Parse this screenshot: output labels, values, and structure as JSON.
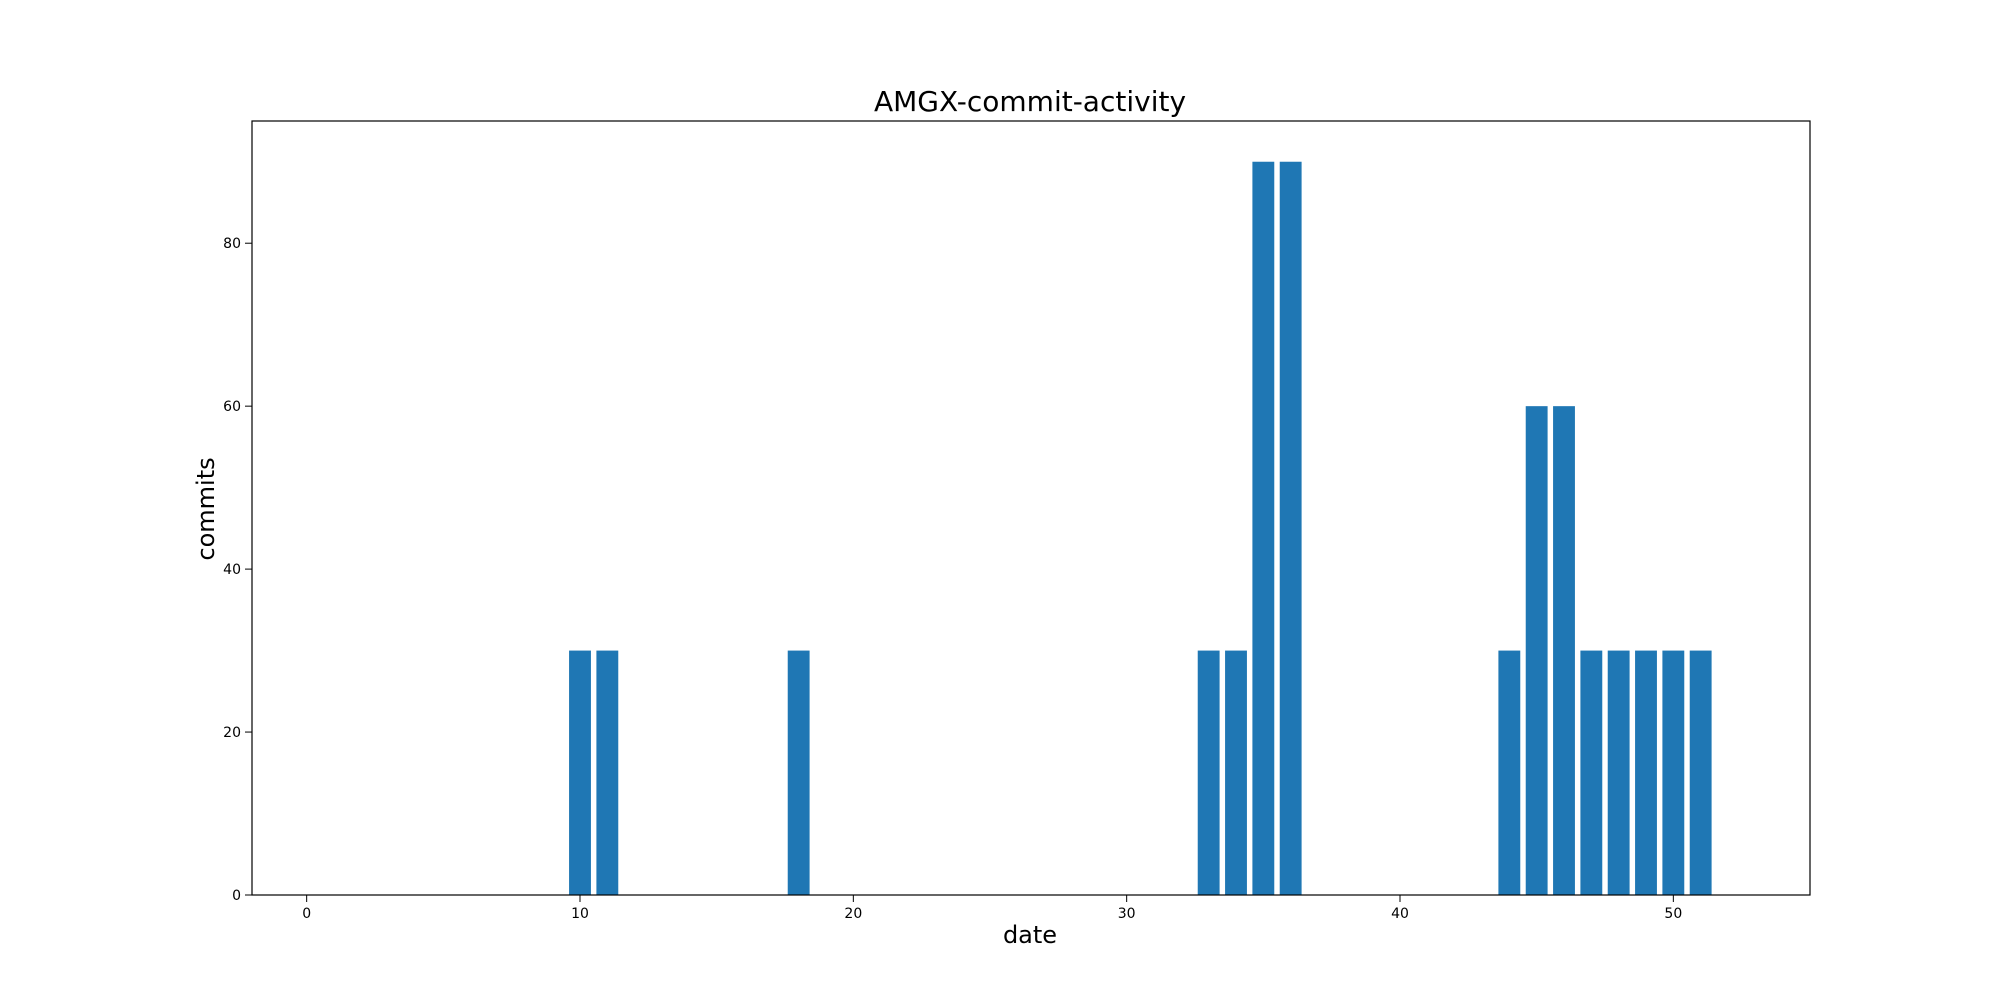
{
  "chart_data": {
    "type": "bar",
    "title": "AMGX-commit-activity",
    "xlabel": "date",
    "ylabel": "commits",
    "xlim": [
      -2,
      55
    ],
    "ylim": [
      0,
      95
    ],
    "xticks": [
      0,
      10,
      20,
      30,
      40,
      50
    ],
    "yticks": [
      0,
      20,
      40,
      60,
      80
    ],
    "grid": false,
    "bar_color": "#1f77b4",
    "x": [
      0,
      1,
      2,
      3,
      4,
      5,
      6,
      7,
      8,
      9,
      10,
      11,
      12,
      13,
      14,
      15,
      16,
      17,
      18,
      19,
      20,
      21,
      22,
      23,
      24,
      25,
      26,
      27,
      28,
      29,
      30,
      31,
      32,
      33,
      34,
      35,
      36,
      37,
      38,
      39,
      40,
      41,
      42,
      43,
      44,
      45,
      46,
      47,
      48,
      49,
      50,
      51
    ],
    "values": [
      0,
      0,
      0,
      0,
      0,
      0,
      0,
      0,
      0,
      0,
      30,
      30,
      0,
      0,
      0,
      0,
      0,
      0,
      30,
      0,
      0,
      0,
      0,
      0,
      0,
      0,
      0,
      0,
      0,
      0,
      0,
      0,
      0,
      30,
      30,
      90,
      90,
      0,
      0,
      0,
      0,
      0,
      0,
      0,
      30,
      60,
      60,
      30,
      30,
      30,
      30,
      30
    ]
  }
}
